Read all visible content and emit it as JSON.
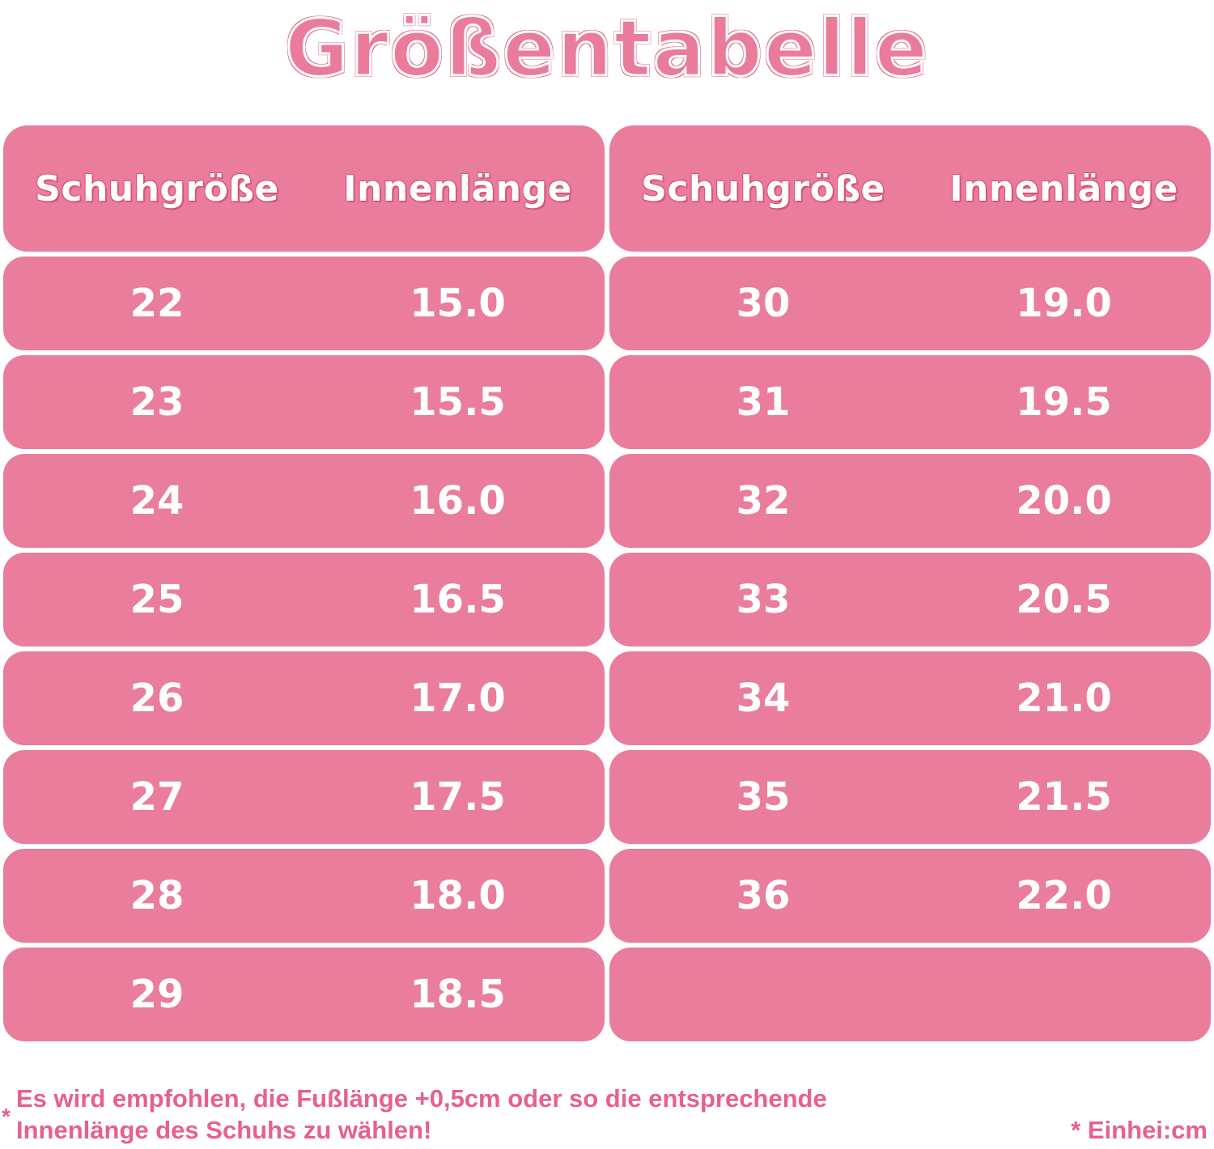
{
  "title": "Größentabelle",
  "left_table": {
    "headers": [
      "Schuhgröße",
      "Innenlänge"
    ],
    "rows": [
      [
        "22",
        "15.0"
      ],
      [
        "23",
        "15.5"
      ],
      [
        "24",
        "16.0"
      ],
      [
        "25",
        "16.5"
      ],
      [
        "26",
        "17.0"
      ],
      [
        "27",
        "17.5"
      ],
      [
        "28",
        "18.0"
      ],
      [
        "29",
        "18.5"
      ]
    ]
  },
  "right_table": {
    "headers": [
      "Schuhgröße",
      "Innenlänge"
    ],
    "rows": [
      [
        "30",
        "19.0"
      ],
      [
        "31",
        "19.5"
      ],
      [
        "32",
        "20.0"
      ],
      [
        "33",
        "20.5"
      ],
      [
        "34",
        "21.0"
      ],
      [
        "35",
        "21.5"
      ],
      [
        "36",
        "22.0"
      ],
      [
        "",
        ""
      ]
    ]
  },
  "footnote": {
    "star": "*",
    "line1": "Es wird empfohlen, die Fußlänge +0,5cm oder so die entsprechende",
    "line2": "Innenlänge des Schuhs zu wählen!"
  },
  "unit_note": "* Einhei:cm",
  "colors": {
    "row_fill": "#e97d9b",
    "accent_text": "#e8608b",
    "title_fill": "#ea7b9a"
  }
}
